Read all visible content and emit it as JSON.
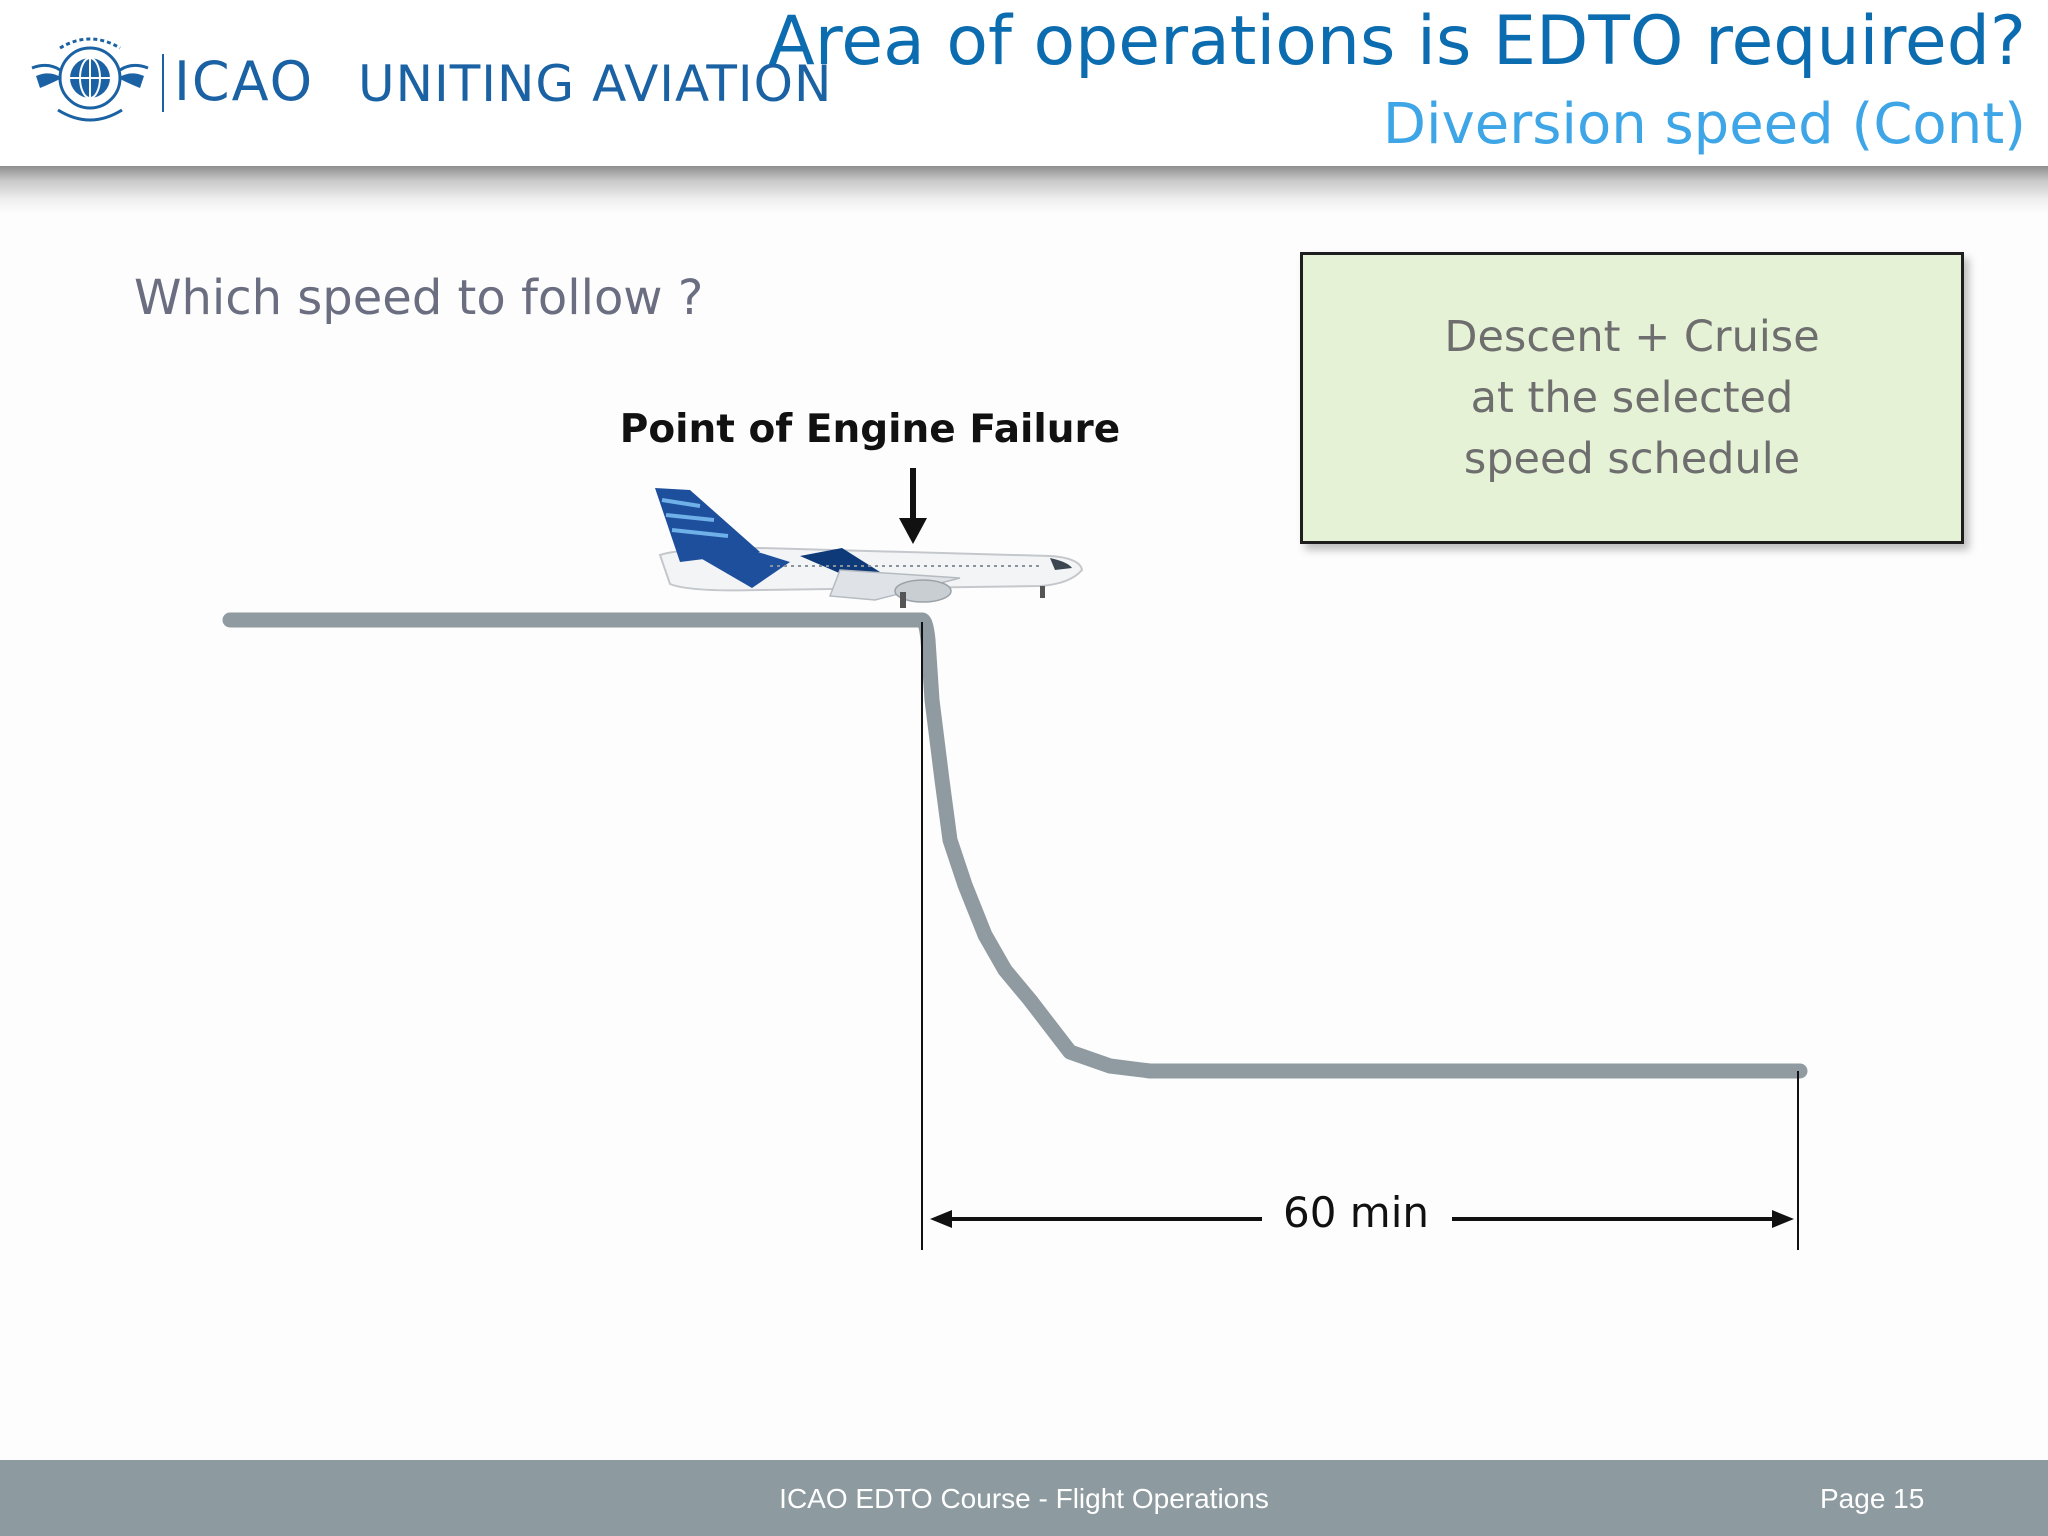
{
  "header": {
    "org_short": "ICAO",
    "slogan": "UNITING AVIATION",
    "title": "Area of operations is EDTO required?",
    "subtitle": "Diversion speed (Cont)"
  },
  "body": {
    "question": "Which speed to follow ?"
  },
  "diagram": {
    "failure_label": "Point of Engine Failure",
    "duration_label": "60 min",
    "info_box": {
      "lines": [
        "Descent + Cruise",
        "at the selected",
        "speed schedule"
      ]
    },
    "colors": {
      "profile_line": "#8f9ba0",
      "info_box_fill": "#e6f2d6",
      "aircraft_tail": "#1d4f9c"
    }
  },
  "footer": {
    "course": "ICAO EDTO Course - Flight Operations",
    "page": "Page 15"
  }
}
